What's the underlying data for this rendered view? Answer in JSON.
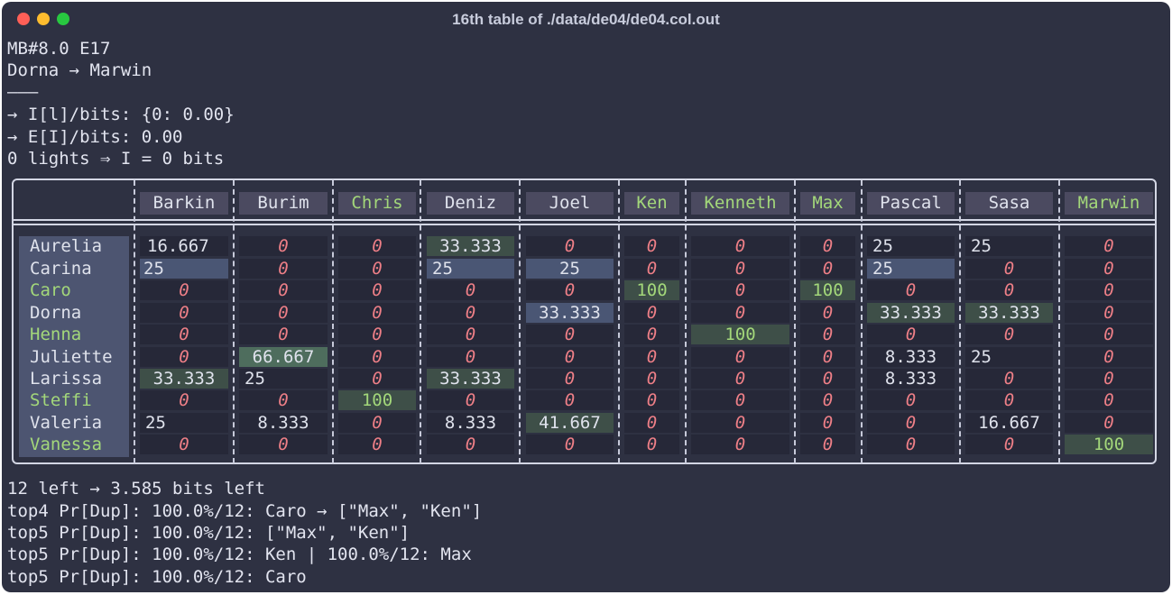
{
  "window": {
    "title": "16th table of ./data/de04/de04.col.out"
  },
  "pre_lines": [
    "MB#8.0 E17",
    "Dorna → Marwin",
    "———",
    "→ I[l]/bits: {0: 0.00}",
    "→ E[I]/bits: 0.00",
    "0 lights ⇒ I = 0 bits"
  ],
  "columns": [
    {
      "name": "Barkin",
      "color": "white"
    },
    {
      "name": "Burim",
      "color": "white"
    },
    {
      "name": "Chris",
      "color": "green"
    },
    {
      "name": "Deniz",
      "color": "white"
    },
    {
      "name": "Joel",
      "color": "white"
    },
    {
      "name": "Ken",
      "color": "green"
    },
    {
      "name": "Kenneth",
      "color": "green"
    },
    {
      "name": "Max",
      "color": "green"
    },
    {
      "name": "Pascal",
      "color": "white"
    },
    {
      "name": "Sasa",
      "color": "white"
    },
    {
      "name": "Marwin",
      "color": "green"
    }
  ],
  "rows": [
    {
      "name": "Aurelia",
      "color": "white",
      "cells": [
        "16.667",
        "0",
        "0",
        "33.333",
        "0",
        "0",
        "0",
        "0",
        "25",
        "25",
        "0"
      ]
    },
    {
      "name": "Carina",
      "color": "white",
      "cells": [
        "25",
        "0",
        "0",
        "25",
        "25",
        "0",
        "0",
        "0",
        "25",
        "0",
        "0"
      ]
    },
    {
      "name": "Caro",
      "color": "green",
      "cells": [
        "0",
        "0",
        "0",
        "0",
        "0",
        "100",
        "0",
        "100",
        "0",
        "0",
        "0"
      ]
    },
    {
      "name": "Dorna",
      "color": "white",
      "cells": [
        "0",
        "0",
        "0",
        "0",
        "33.333",
        "0",
        "0",
        "0",
        "33.333",
        "33.333",
        "0"
      ]
    },
    {
      "name": "Henna",
      "color": "green",
      "cells": [
        "0",
        "0",
        "0",
        "0",
        "0",
        "0",
        "100",
        "0",
        "0",
        "0",
        "0"
      ]
    },
    {
      "name": "Juliette",
      "color": "white",
      "cells": [
        "0",
        "66.667",
        "0",
        "0",
        "0",
        "0",
        "0",
        "0",
        "8.333",
        "25",
        "0"
      ]
    },
    {
      "name": "Larissa",
      "color": "white",
      "cells": [
        "33.333",
        "25",
        "0",
        "33.333",
        "0",
        "0",
        "0",
        "0",
        "8.333",
        "0",
        "0"
      ]
    },
    {
      "name": "Steffi",
      "color": "green",
      "cells": [
        "0",
        "0",
        "100",
        "0",
        "0",
        "0",
        "0",
        "0",
        "0",
        "0",
        "0"
      ]
    },
    {
      "name": "Valeria",
      "color": "white",
      "cells": [
        "25",
        "8.333",
        "0",
        "8.333",
        "41.667",
        "0",
        "0",
        "0",
        "0",
        "16.667",
        "0"
      ]
    },
    {
      "name": "Vanessa",
      "color": "green",
      "cells": [
        "0",
        "0",
        "0",
        "0",
        "0",
        "0",
        "0",
        "0",
        "0",
        "0",
        "100"
      ]
    }
  ],
  "post_lines": [
    "12 left → 3.585 bits left",
    "top4 Pr[Dup]: 100.0%/12: Caro → [\"Max\", \"Ken\"]",
    "top5 Pr[Dup]: 100.0%/12: [\"Max\", \"Ken\"]",
    "top5 Pr[Dup]: 100.0%/12: Ken | 100.0%/12: Max",
    "top5 Pr[Dup]: 100.0%/12: Caro"
  ],
  "colors": {
    "background": "#2e3142",
    "text": "#e2e4ef",
    "green": "#a3d77a",
    "zero": "#ee7f87",
    "border": "#d3d6e4"
  }
}
